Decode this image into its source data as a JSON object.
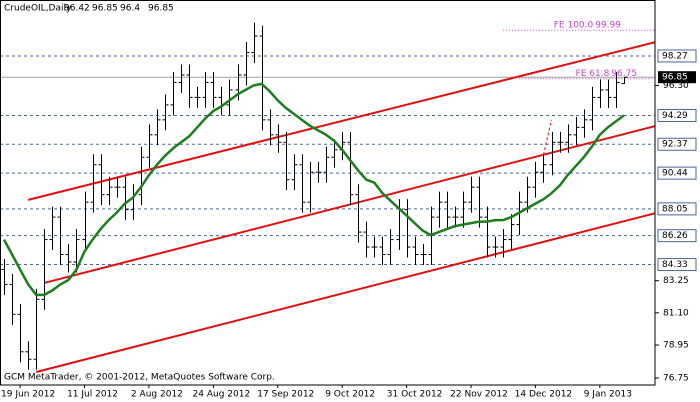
{
  "chart_data": {
    "type": "ohlc",
    "title": "CrudeOIL,Daily",
    "footer": "GCM MetaTrader, © 2001-2012, MetaQuotes Software Corp.",
    "color": "#000000",
    "categories": [
      null,
      null,
      "19 Jun 2012",
      null,
      null,
      null,
      null,
      null,
      null,
      null,
      "11 Jul 2012",
      null,
      null,
      null,
      null,
      null,
      null,
      null,
      "2 Aug 2012",
      null,
      null,
      null,
      null,
      null,
      null,
      null,
      "24 Aug 2012",
      null,
      null,
      null,
      null,
      null,
      null,
      null,
      "17 Sep 2012",
      null,
      null,
      null,
      null,
      null,
      null,
      null,
      "9 Oct 2012",
      null,
      null,
      null,
      null,
      null,
      null,
      null,
      "31 Oct 2012",
      null,
      null,
      null,
      null,
      null,
      null,
      null,
      "22 Nov 2012",
      null,
      null,
      null,
      null,
      null,
      null,
      null,
      "14 Dec 2012",
      null,
      null,
      null,
      null,
      null,
      null,
      null,
      "9 Jan 2013",
      null,
      null,
      null
    ],
    "open": [
      84,
      83,
      81,
      78.5,
      78,
      82,
      86,
      87.5,
      85,
      84.5,
      86,
      88.5,
      91,
      89,
      89.5,
      89.5,
      88,
      89,
      91.5,
      93,
      94,
      95,
      96.5,
      97,
      95.5,
      95.5,
      96.5,
      95.5,
      95,
      96,
      97,
      98.5,
      99.6,
      94,
      93,
      92.5,
      90,
      91,
      88.5,
      90.5,
      90.5,
      91.5,
      92,
      92.5,
      89,
      86.5,
      85.5,
      85.5,
      85,
      86,
      88,
      85.5,
      85,
      85,
      87.5,
      88.5,
      87.5,
      87.5,
      88.5,
      89.5,
      87.5,
      85.5,
      85.5,
      86,
      87,
      88.5,
      89.5,
      90.5,
      91,
      92.5,
      92.5,
      93,
      93.5,
      94,
      95.5,
      96,
      95.5,
      96.42
    ],
    "high": [
      84.7,
      83.7,
      81.7,
      79.2,
      82.7,
      86.7,
      88.2,
      88.2,
      85.7,
      86.7,
      89.2,
      91.7,
      91.7,
      90.2,
      90.2,
      90.2,
      89.7,
      92.2,
      93.7,
      94.7,
      95.7,
      97.2,
      97.7,
      97.7,
      96.2,
      97.2,
      97.2,
      96.2,
      96.7,
      97.7,
      99.2,
      100.5,
      100.3,
      94.7,
      93.7,
      93.2,
      91.7,
      91.7,
      91.2,
      91.2,
      92.2,
      92.7,
      93.2,
      93.2,
      89.7,
      87.2,
      86.2,
      86.2,
      86.7,
      88.7,
      88.7,
      86.2,
      85.7,
      88.2,
      89.2,
      89.2,
      88.2,
      89.2,
      90.2,
      90.2,
      88.2,
      86.2,
      86.7,
      87.7,
      89.2,
      90.2,
      91.2,
      91.7,
      93.2,
      93.2,
      93.7,
      94.2,
      94.7,
      96.2,
      96.7,
      96.7,
      97.2,
      96.85
    ],
    "low": [
      82.3,
      80.3,
      77.8,
      77.3,
      77.3,
      81.3,
      85.3,
      84.3,
      83.8,
      83.8,
      85.3,
      87.8,
      88.3,
      88.3,
      88.8,
      87.3,
      87.3,
      88.3,
      90.8,
      92.3,
      93.3,
      94.3,
      95.8,
      94.8,
      94.8,
      94.8,
      94.8,
      94.3,
      94.3,
      95.3,
      96.3,
      97.8,
      93.3,
      92.3,
      91.8,
      89.3,
      89.3,
      87.8,
      87.8,
      89.8,
      89.8,
      90.8,
      91.3,
      88.3,
      85.8,
      84.8,
      84.8,
      84.3,
      84.3,
      85.3,
      84.8,
      84.3,
      84.3,
      84.3,
      86.8,
      86.8,
      86.8,
      86.8,
      87.8,
      86.8,
      84.8,
      84.8,
      84.8,
      85.3,
      86.3,
      87.8,
      88.8,
      89.8,
      90.3,
      91.8,
      91.8,
      92.3,
      92.8,
      93.3,
      94.8,
      94.8,
      94.8,
      96.4
    ],
    "close": [
      83,
      81,
      78.5,
      78,
      82,
      86,
      87.5,
      85,
      84.5,
      86,
      88.5,
      91,
      89,
      89.5,
      89.5,
      88,
      89,
      91.5,
      93,
      94,
      95,
      96.5,
      97,
      95.5,
      95.5,
      96.5,
      95.5,
      95,
      96,
      97,
      98.5,
      99.6,
      94,
      93,
      92.5,
      90,
      91,
      88.5,
      90.5,
      90.5,
      91.5,
      92,
      92.5,
      89,
      86.5,
      85.5,
      85.5,
      85,
      86,
      88,
      85.5,
      85,
      85,
      87.5,
      88.5,
      87.5,
      87.5,
      88.5,
      89.5,
      87.5,
      85.5,
      85.5,
      86,
      87,
      88.5,
      89.5,
      90.5,
      91,
      92.5,
      92.5,
      93,
      93.5,
      94,
      95.5,
      96,
      95.5,
      96.5,
      96.85
    ],
    "moving_average": {
      "color": "#1e7d1e",
      "values": [
        86.0,
        85.0,
        84.0,
        83.0,
        82.3,
        82.3,
        82.6,
        83.0,
        83.3,
        84.0,
        85.2,
        86.0,
        86.7,
        87.3,
        87.8,
        88.4,
        88.8,
        89.5,
        90.3,
        91.0,
        91.6,
        92.1,
        92.5,
        92.9,
        93.5,
        94.1,
        94.6,
        94.9,
        95.3,
        95.7,
        96.0,
        96.3,
        96.4,
        95.9,
        95.3,
        94.8,
        94.4,
        94.0,
        93.6,
        93.3,
        93.0,
        92.6,
        92.0,
        91.3,
        90.6,
        90.0,
        89.8,
        89.1,
        88.6,
        88.1,
        87.6,
        87.1,
        86.6,
        86.3,
        86.5,
        86.7,
        86.9,
        87.0,
        87.1,
        87.2,
        87.2,
        87.3,
        87.3,
        87.5,
        87.8,
        88.1,
        88.4,
        88.7,
        89.1,
        89.6,
        90.3,
        90.9,
        91.5,
        92.2,
        93.0,
        93.5,
        93.9,
        94.3
      ]
    },
    "trendlines": [
      {
        "color": "#e01010",
        "x": [
          3,
          81
        ],
        "values": [
          88.65,
          99.21
        ]
      },
      {
        "color": "#e01010",
        "x": [
          5,
          81
        ],
        "values": [
          83.1,
          93.6
        ]
      },
      {
        "color": "#e01010",
        "x": [
          4,
          81
        ],
        "values": [
          77.15,
          87.78
        ]
      },
      {
        "color": "#e01010",
        "x": [
          67,
          68
        ],
        "values": [
          91.66,
          94.0
        ],
        "dashed": true
      }
    ],
    "levels": [
      98.27,
      94.29,
      92.37,
      90.44,
      88.05,
      86.26,
      84.33
    ],
    "level_color": "#4a64a0",
    "fibo": {
      "color": "#cc44cc",
      "items": [
        {
          "label": "FE 100.0",
          "value": 99.99,
          "x": 62
        },
        {
          "label": "FE 61.8",
          "value": 96.75,
          "x": 64
        }
      ]
    },
    "ylim": [
      76.28,
      102.01
    ],
    "yticks": [
      76.75,
      78.95,
      {
        "value": 81.1,
        "label": "81.10"
      },
      83.25,
      {
        "value": 96.3,
        "label": "96.30"
      }
    ]
  }
}
